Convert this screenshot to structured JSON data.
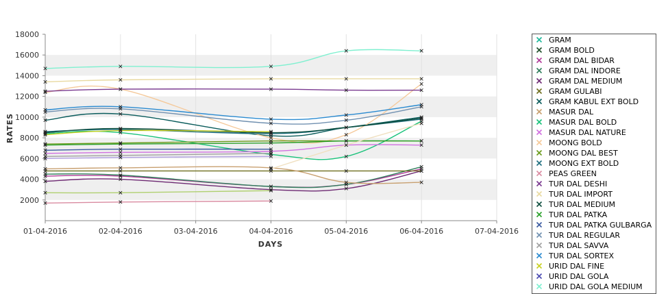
{
  "chart_data": {
    "type": "line",
    "xlabel": "DAYS",
    "ylabel": "RATES",
    "ylim": [
      0,
      18000
    ],
    "yticks": [
      2000,
      4000,
      6000,
      8000,
      10000,
      12000,
      14000,
      16000,
      18000
    ],
    "grid": "alternating horizontal bands, vertical gridlines",
    "legend_position": "right",
    "x": [
      "01-04-2016",
      "02-04-2016",
      "03-04-2016",
      "04-04-2016",
      "05-04-2016",
      "06-04-2016",
      "07-04-2016"
    ],
    "series": [
      {
        "name": "GRAM",
        "color": "#1cb89a",
        "values": [
          null,
          null,
          null,
          null,
          null,
          null,
          null
        ]
      },
      {
        "name": "GRAM BOLD",
        "color": "#1f4f2a",
        "values": [
          null,
          null,
          null,
          null,
          null,
          null,
          null
        ]
      },
      {
        "name": "GRAM DAL BIDAR",
        "color": "#b03a98",
        "values": [
          4300,
          4300,
          null,
          3300,
          3500,
          5000,
          null
        ]
      },
      {
        "name": "GRAM DAL INDORE",
        "color": "#2f7d5b",
        "values": [
          4500,
          4400,
          null,
          3300,
          3500,
          5200,
          null
        ]
      },
      {
        "name": "GRAM DAL MEDIUM",
        "color": "#6e2a73",
        "values": [
          3800,
          4000,
          null,
          3000,
          3100,
          4800,
          null
        ]
      },
      {
        "name": "GRAM GULABI",
        "color": "#6e6e1e",
        "values": [
          4800,
          4800,
          null,
          4800,
          4800,
          4800,
          null
        ]
      },
      {
        "name": "GRAM KABUL EXT BOLD",
        "color": "#0a5c5c",
        "values": [
          9700,
          10300,
          null,
          8200,
          9000,
          10000,
          null
        ]
      },
      {
        "name": "MASUR DAL",
        "color": "#c8a070",
        "values": [
          5000,
          5100,
          null,
          5100,
          3700,
          3700,
          null
        ]
      },
      {
        "name": "MASUR DAL BOLD",
        "color": "#19c27a",
        "values": [
          8400,
          8500,
          null,
          6400,
          6200,
          9600,
          null
        ]
      },
      {
        "name": "MASUR DAL NATURE",
        "color": "#d070e0",
        "values": [
          6500,
          6600,
          null,
          6700,
          7300,
          7300,
          null
        ]
      },
      {
        "name": "MOONG BOLD",
        "color": "#f5c99a",
        "values": [
          12400,
          12700,
          null,
          8000,
          8300,
          13200,
          null
        ]
      },
      {
        "name": "MOONG DAL BEST",
        "color": "#6a9a1a",
        "values": [
          7400,
          7500,
          null,
          7700,
          7700,
          7700,
          null
        ]
      },
      {
        "name": "MOONG EXT BOLD",
        "color": "#1f6f7f",
        "values": [
          8600,
          8800,
          null,
          8400,
          9000,
          9800,
          null
        ]
      },
      {
        "name": "PEAS GREEN",
        "color": "#d98aa0",
        "values": [
          1700,
          1800,
          null,
          1900,
          null,
          null,
          null
        ]
      },
      {
        "name": "TUR DAL DESHI",
        "color": "#7a3a90",
        "values": [
          12500,
          12700,
          null,
          12700,
          12600,
          12600,
          null
        ]
      },
      {
        "name": "TUR DAL IMPORT",
        "color": "#e8d9a0",
        "values": [
          13400,
          13600,
          null,
          13700,
          13700,
          13700,
          null
        ]
      },
      {
        "name": "TUR DAL MEDIUM",
        "color": "#0f4f3f",
        "values": [
          8500,
          8900,
          null,
          8500,
          9000,
          9900,
          null
        ]
      },
      {
        "name": "TUR DAL PATKA",
        "color": "#2aa02a",
        "values": [
          7300,
          7400,
          null,
          7500,
          7700,
          7700,
          null
        ]
      },
      {
        "name": "TUR DAL PATKA GULBARGA",
        "color": "#3a5aa0",
        "values": [
          6800,
          6900,
          null,
          6900,
          null,
          null,
          null
        ]
      },
      {
        "name": "TUR DAL REGULAR",
        "color": "#7090b0",
        "values": [
          10500,
          10800,
          null,
          9400,
          9700,
          11000,
          null
        ]
      },
      {
        "name": "TUR DAL SAVVA",
        "color": "#a0a0a0",
        "values": [
          6200,
          6300,
          null,
          6500,
          null,
          null,
          null
        ]
      },
      {
        "name": "TUR DAL SORTEX",
        "color": "#2a8ad0",
        "values": [
          10700,
          11000,
          null,
          9800,
          10200,
          11200,
          null
        ]
      },
      {
        "name": "URID DAL FINE",
        "color": "#c8d020",
        "values": [
          8300,
          8700,
          null,
          8600,
          null,
          null,
          null
        ]
      },
      {
        "name": "URID DAL GOLA",
        "color": "#4a4ab0",
        "values": [
          null,
          null,
          null,
          null,
          null,
          null,
          null
        ]
      },
      {
        "name": "URID DAL GOLA MEDIUM",
        "color": "#7ff0d0",
        "values": [
          14700,
          14900,
          null,
          14900,
          16400,
          16400,
          null
        ]
      },
      {
        "name": "",
        "color": "#b0d070",
        "values": [
          2700,
          2700,
          null,
          2900,
          null,
          null,
          null
        ]
      },
      {
        "name": "",
        "color": "#b0a0e0",
        "values": [
          6000,
          6100,
          null,
          6200,
          null,
          null,
          null
        ]
      },
      {
        "name": "",
        "color": "#f0e0c0",
        "values": [
          null,
          null,
          null,
          5000,
          7300,
          9400,
          null
        ]
      }
    ]
  }
}
